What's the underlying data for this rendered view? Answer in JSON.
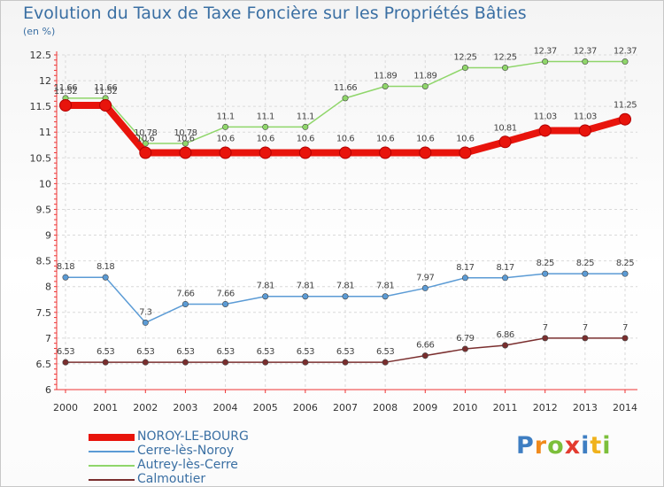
{
  "chart_data": {
    "type": "line",
    "title": "Evolution du Taux de Taxe Foncière sur les Propriétés Bâties",
    "subtitle": "(en %)",
    "x": [
      "2000",
      "2001",
      "2002",
      "2003",
      "2004",
      "2005",
      "2006",
      "2007",
      "2008",
      "2009",
      "2010",
      "2011",
      "2012",
      "2013",
      "2014"
    ],
    "ylim": [
      6,
      12.5
    ],
    "yticks": [
      "6",
      "6.5",
      "7",
      "7.5",
      "8",
      "8.5",
      "9",
      "9.5",
      "10",
      "10.5",
      "11",
      "11.5",
      "12",
      "12.5"
    ],
    "grid": true,
    "series": [
      {
        "name": "NOROY-LE-BOURG",
        "color": "#e8140c",
        "values": [
          11.52,
          11.52,
          10.6,
          10.6,
          10.6,
          10.6,
          10.6,
          10.6,
          10.6,
          10.6,
          10.6,
          10.81,
          11.03,
          11.03,
          11.25
        ],
        "labels": [
          "11.52",
          "11.52",
          "10.6",
          "10.6",
          "10.6",
          "10.6",
          "10.6",
          "10.6",
          "10.6",
          "10.6",
          "10.6",
          "10.81",
          "11.03",
          "11.03",
          "11.25"
        ]
      },
      {
        "name": "Cerre-lès-Noroy",
        "color": "#5b9bd5",
        "values": [
          8.18,
          8.18,
          7.3,
          7.66,
          7.66,
          7.81,
          7.81,
          7.81,
          7.81,
          7.97,
          8.17,
          8.17,
          8.25,
          8.25,
          8.25
        ],
        "labels": [
          "8.18",
          "8.18",
          "7.3",
          "7.66",
          "7.66",
          "7.81",
          "7.81",
          "7.81",
          "7.81",
          "7.97",
          "8.17",
          "8.17",
          "8.25",
          "8.25",
          "8.25"
        ]
      },
      {
        "name": "Autrey-lès-Cerre",
        "color": "#8fd66a",
        "values": [
          11.66,
          11.66,
          10.78,
          10.78,
          11.1,
          11.1,
          11.1,
          11.66,
          11.89,
          11.89,
          12.25,
          12.25,
          12.37,
          12.37,
          12.37
        ],
        "labels": [
          "11.66",
          "11.66",
          "10.78",
          "10.78",
          "11.1",
          "11.1",
          "11.1",
          "11.66",
          "11.89",
          "11.89",
          "12.25",
          "12.25",
          "12.37",
          "12.37",
          "12.37"
        ]
      },
      {
        "name": "Calmoutier",
        "color": "#7a2e2e",
        "values": [
          6.53,
          6.53,
          6.53,
          6.53,
          6.53,
          6.53,
          6.53,
          6.53,
          6.53,
          6.66,
          6.79,
          6.86,
          7,
          7,
          7
        ],
        "labels": [
          "6.53",
          "6.53",
          "6.53",
          "6.53",
          "6.53",
          "6.53",
          "6.53",
          "6.53",
          "6.53",
          "6.66",
          "6.79",
          "6.86",
          "7",
          "7",
          "7"
        ]
      }
    ]
  },
  "logo": {
    "letters": [
      "P",
      "r",
      "o",
      "x",
      "i",
      "t",
      "i"
    ]
  }
}
